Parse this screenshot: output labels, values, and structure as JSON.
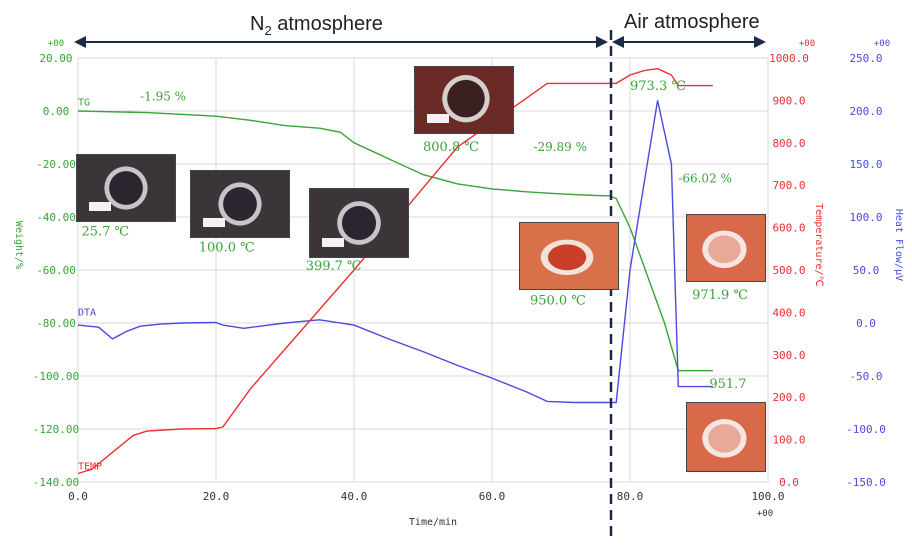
{
  "annotations": {
    "n2": "N",
    "n2_sub": "2",
    "n2_rest": " atmosphere",
    "air": "Air atmosphere"
  },
  "chart_data": {
    "type": "line",
    "xlabel": "Time/min",
    "x_multiplier": "+00",
    "xlim": [
      0,
      100
    ],
    "x_ticks": [
      "0.0",
      "20.0",
      "40.0",
      "60.0",
      "80.0",
      "100.0"
    ],
    "axes": {
      "weight": {
        "label": "Weight/%",
        "multiplier": "+00",
        "ylim": [
          -140,
          20
        ],
        "color": "#3aa33a",
        "ticks": [
          "20.00",
          "0.00",
          "-20.00",
          "-40.00",
          "-60.00",
          "-80.00",
          "-100.00",
          "-120.00",
          "-140.00"
        ]
      },
      "temperature": {
        "label": "Temperature/℃",
        "multiplier": "+00",
        "ylim": [
          0,
          1000
        ],
        "color": "#e83030",
        "ticks": [
          "1000.0",
          "900.0",
          "800.0",
          "700.0",
          "600.0",
          "500.0",
          "400.0",
          "300.0",
          "200.0",
          "100.0",
          "0.0"
        ]
      },
      "heat_flow": {
        "label": "Heat Flow/μV",
        "multiplier": "+00",
        "ylim": [
          -150,
          250
        ],
        "color": "#4a4ae0",
        "ticks": [
          "250.0",
          "200.0",
          "150.0",
          "100.0",
          "50.0",
          "0.0",
          "-50.0",
          "-100.0",
          "-150.0"
        ]
      }
    },
    "series": [
      {
        "name": "TG",
        "axis": "weight",
        "color": "#3aa33a",
        "x": [
          0,
          10,
          20,
          25,
          30,
          35,
          38,
          40,
          45,
          50,
          55,
          60,
          65,
          70,
          75,
          77,
          78,
          80,
          85,
          87,
          92
        ],
        "y": [
          0,
          -0.6,
          -1.95,
          -3.5,
          -5.5,
          -6.5,
          -8,
          -12,
          -18,
          -24,
          -27.5,
          -29.4,
          -30.5,
          -31.3,
          -31.9,
          -32,
          -33,
          -44,
          -80,
          -98,
          -98
        ]
      },
      {
        "name": "DTA",
        "axis": "heat_flow",
        "color": "#4a4ae0",
        "x": [
          0,
          3,
          5,
          7,
          9,
          12,
          15,
          20,
          21,
          24,
          30,
          35,
          40,
          45,
          50,
          55,
          60,
          65,
          68,
          72,
          78,
          80,
          84,
          86,
          87,
          92
        ],
        "y": [
          -2,
          -4,
          -15,
          -8,
          -3,
          -1,
          0,
          0.5,
          -2,
          -5,
          0,
          3,
          -2,
          -15,
          -27,
          -40,
          -52,
          -65,
          -74,
          -75,
          -75,
          50,
          210,
          150,
          -60,
          -60
        ]
      },
      {
        "name": "TEMP",
        "axis": "temperature",
        "color": "#e83030",
        "x": [
          0,
          2,
          5,
          8,
          10,
          15,
          20,
          21,
          25,
          40,
          55,
          68,
          70,
          78,
          80,
          82,
          84,
          86,
          87,
          92
        ],
        "y": [
          20,
          30,
          70,
          110,
          120,
          125,
          126,
          130,
          220,
          500,
          790,
          940,
          940,
          940,
          960,
          970,
          975,
          960,
          935,
          935
        ]
      }
    ],
    "series_labels": [
      {
        "text": "TG",
        "axis": "weight",
        "x": 0,
        "y": 2
      },
      {
        "text": "DTA",
        "axis": "heat_flow",
        "x": 0,
        "y": 7
      },
      {
        "text": "TEMP",
        "axis": "temperature",
        "x": 0,
        "y": 30
      }
    ],
    "step_labels": [
      {
        "text": "-1.95 %",
        "axis": "weight",
        "x": 9,
        "y": 4
      },
      {
        "text": "-29.89 %",
        "axis": "weight",
        "x": 66,
        "y": -15
      },
      {
        "text": "-66.02 %",
        "axis": "weight",
        "x": 87,
        "y": -27
      }
    ],
    "photo_labels": [
      {
        "text": "25.7 ℃",
        "axis": "weight",
        "x": 0.5,
        "y": -47
      },
      {
        "text": "100.0 ℃",
        "axis": "weight",
        "x": 17.5,
        "y": -53
      },
      {
        "text": "399.7 ℃",
        "axis": "weight",
        "x": 33,
        "y": -60
      },
      {
        "text": "800.8 ℃",
        "axis": "weight",
        "x": 50,
        "y": -15
      },
      {
        "text": "950.0 ℃",
        "axis": "weight",
        "x": 65.5,
        "y": -73
      },
      {
        "text": "973.3 ℃",
        "axis": "weight",
        "x": 80,
        "y": 8
      },
      {
        "text": "971.9 ℃",
        "axis": "weight",
        "x": 89,
        "y": -71
      },
      {
        "text": "951.7",
        "axis": "weight",
        "x": 91.5,
        "y": -104.5
      }
    ],
    "atmosphere_boundary_x": 77.5
  }
}
